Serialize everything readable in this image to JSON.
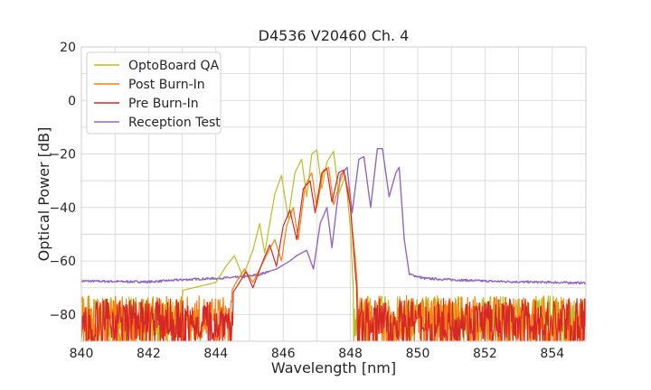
{
  "chart_data": {
    "type": "line",
    "title": "D4536 V20460 Ch. 4",
    "xlabel": "Wavelength [nm]",
    "ylabel": "Optical Power [dB]",
    "xlim": [
      840,
      855
    ],
    "ylim": [
      -90,
      20
    ],
    "xticks": [
      "840",
      "842",
      "844",
      "846",
      "848",
      "850",
      "852",
      "854"
    ],
    "yticks": [
      "20",
      "0",
      "−20",
      "−40",
      "−60",
      "−80"
    ],
    "grid": true,
    "legend_position": "top-left",
    "series": [
      {
        "name": "OptoBoard QA",
        "color": "#bcbd22",
        "points": [
          [
            840,
            -73
          ],
          [
            842,
            -72
          ],
          [
            843,
            -71
          ],
          [
            844,
            -68
          ],
          [
            844.3,
            -62
          ],
          [
            844.55,
            -58
          ],
          [
            844.8,
            -66
          ],
          [
            845.1,
            -56
          ],
          [
            845.3,
            -46
          ],
          [
            845.45,
            -57
          ],
          [
            845.75,
            -35
          ],
          [
            845.95,
            -28
          ],
          [
            846.15,
            -44
          ],
          [
            846.35,
            -27
          ],
          [
            846.55,
            -22
          ],
          [
            846.7,
            -36
          ],
          [
            846.85,
            -20
          ],
          [
            847.0,
            -18.5
          ],
          [
            847.15,
            -33
          ],
          [
            847.3,
            -23
          ],
          [
            847.5,
            -19
          ],
          [
            847.65,
            -35
          ],
          [
            847.85,
            -28
          ],
          [
            848.0,
            -48
          ],
          [
            848.1,
            -75
          ],
          [
            848.3,
            -83
          ],
          [
            850,
            -86
          ],
          [
            852,
            -85
          ],
          [
            854,
            -85
          ],
          [
            855,
            -85
          ]
        ],
        "noise_floor_range": [
          -88,
          -73
        ]
      },
      {
        "name": "Post Burn-In",
        "color": "#ff7f0e",
        "points": [
          [
            840,
            -83
          ],
          [
            843.5,
            -82
          ],
          [
            844.2,
            -78
          ],
          [
            844.6,
            -68
          ],
          [
            844.85,
            -63
          ],
          [
            845.1,
            -68
          ],
          [
            845.5,
            -58
          ],
          [
            845.75,
            -52
          ],
          [
            845.95,
            -60
          ],
          [
            846.1,
            -47
          ],
          [
            846.3,
            -40
          ],
          [
            846.45,
            -52
          ],
          [
            846.65,
            -32
          ],
          [
            846.85,
            -27
          ],
          [
            847.0,
            -40
          ],
          [
            847.2,
            -26
          ],
          [
            847.35,
            -25
          ],
          [
            847.5,
            -39
          ],
          [
            847.7,
            -30
          ],
          [
            847.8,
            -27
          ],
          [
            847.95,
            -34
          ],
          [
            848.15,
            -60
          ],
          [
            848.3,
            -85
          ],
          [
            850,
            -84
          ],
          [
            852,
            -84
          ],
          [
            855,
            -84
          ]
        ],
        "noise_floor_range": [
          -90,
          -73
        ]
      },
      {
        "name": "Pre Burn-In",
        "color": "#d62728",
        "points": [
          [
            840,
            -85
          ],
          [
            843.5,
            -84
          ],
          [
            844.5,
            -72
          ],
          [
            844.9,
            -64
          ],
          [
            845.1,
            -70
          ],
          [
            845.4,
            -60
          ],
          [
            845.6,
            -54
          ],
          [
            845.8,
            -62
          ],
          [
            846.0,
            -47
          ],
          [
            846.2,
            -41
          ],
          [
            846.4,
            -52
          ],
          [
            846.6,
            -33
          ],
          [
            846.8,
            -30
          ],
          [
            846.95,
            -42
          ],
          [
            847.15,
            -27
          ],
          [
            847.3,
            -25.5
          ],
          [
            847.45,
            -38
          ],
          [
            847.65,
            -27
          ],
          [
            847.8,
            -26
          ],
          [
            848.0,
            -40
          ],
          [
            848.15,
            -65
          ],
          [
            848.3,
            -86
          ],
          [
            850,
            -85
          ],
          [
            852,
            -85
          ],
          [
            855,
            -85
          ]
        ],
        "noise_floor_range": [
          -90,
          -74
        ]
      },
      {
        "name": "Reception Test",
        "color": "#9467bd",
        "points": [
          [
            840,
            -67.5
          ],
          [
            842,
            -67.8
          ],
          [
            843,
            -67
          ],
          [
            844,
            -66.5
          ],
          [
            844.8,
            -66
          ],
          [
            845.3,
            -65
          ],
          [
            845.8,
            -63
          ],
          [
            846.2,
            -60
          ],
          [
            846.4,
            -58
          ],
          [
            846.7,
            -56
          ],
          [
            846.9,
            -63
          ],
          [
            847.1,
            -46
          ],
          [
            847.3,
            -40
          ],
          [
            847.45,
            -55
          ],
          [
            847.7,
            -28
          ],
          [
            847.9,
            -25
          ],
          [
            848.05,
            -42
          ],
          [
            848.25,
            -22
          ],
          [
            848.4,
            -21
          ],
          [
            848.6,
            -40
          ],
          [
            848.8,
            -18
          ],
          [
            848.95,
            -18
          ],
          [
            849.15,
            -36
          ],
          [
            849.35,
            -27
          ],
          [
            849.45,
            -25
          ],
          [
            849.6,
            -52
          ],
          [
            849.75,
            -65
          ],
          [
            850.2,
            -66.5
          ],
          [
            851,
            -67
          ],
          [
            852,
            -67.5
          ],
          [
            853,
            -67.8
          ],
          [
            854,
            -68
          ],
          [
            855,
            -68.2
          ]
        ],
        "noise_floor_range": [
          -69,
          -66
        ]
      }
    ]
  }
}
